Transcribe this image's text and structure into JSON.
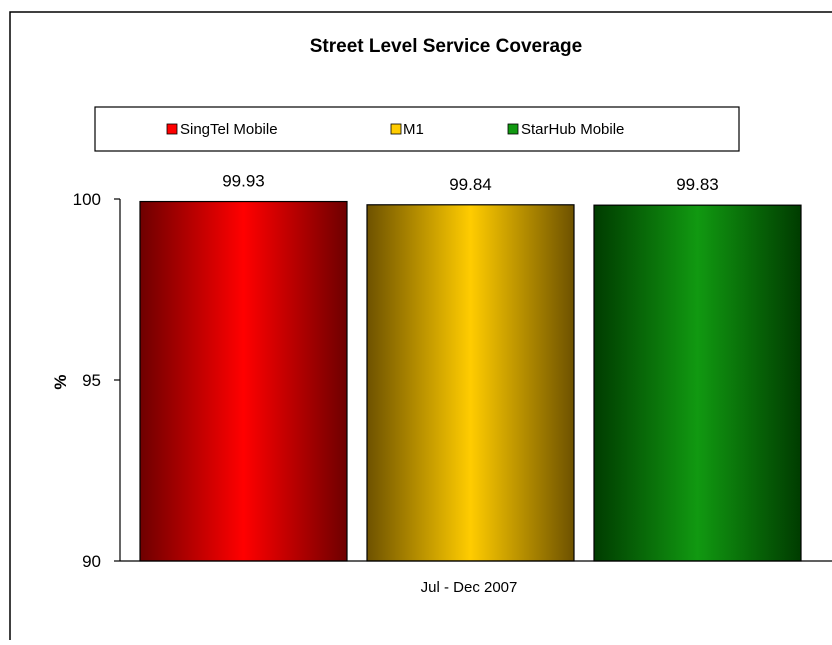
{
  "chart_data": {
    "type": "bar",
    "title": "Street Level Service Coverage",
    "categories": [
      "Jul - Dec 2007"
    ],
    "series": [
      {
        "name": "SingTel Mobile",
        "values": [
          99.93
        ],
        "color": "#ff0000",
        "dark": "#6e0000"
      },
      {
        "name": "M1",
        "values": [
          99.84
        ],
        "color": "#ffcc00",
        "dark": "#6e5200"
      },
      {
        "name": "StarHub Mobile",
        "values": [
          99.83
        ],
        "color": "#119911",
        "dark": "#003c00"
      }
    ],
    "xlabel": "",
    "ylabel": "%",
    "ylim": [
      90,
      100
    ],
    "yticks": [
      90,
      95,
      100
    ],
    "data_labels": [
      "99.93",
      "99.84",
      "99.83"
    ],
    "legend_position": "top",
    "grid": false
  }
}
